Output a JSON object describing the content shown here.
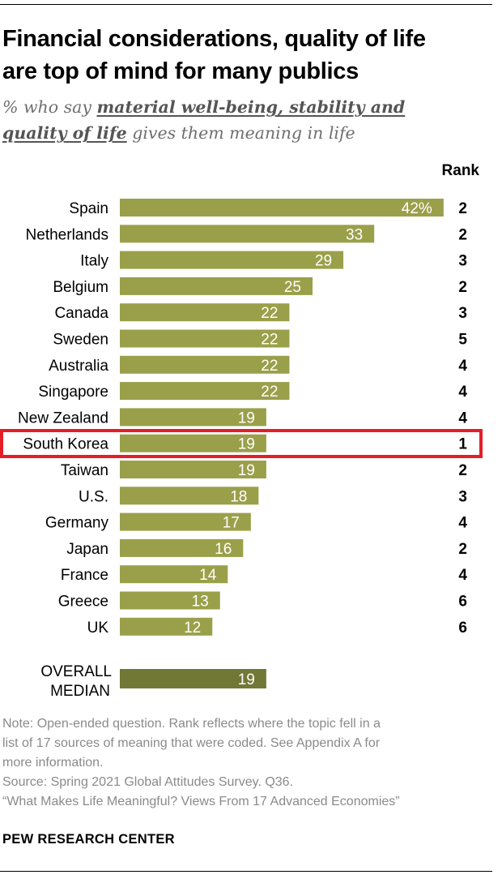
{
  "header": {
    "title_line1": "Financial considerations, quality of life",
    "title_line2": "are top of mind for many publics",
    "subtitle_prefix": "% who say",
    "subtitle_emphasis_1": "material well-being, stability and",
    "subtitle_emphasis_2": "quality of life",
    "subtitle_suffix": "gives them meaning in life",
    "rank_label": "Rank"
  },
  "colors": {
    "bar": "#9aa04a",
    "median_bar": "#717835",
    "highlight": "#e41e26",
    "value_text": "#ffffff"
  },
  "chart_data": {
    "type": "bar",
    "orientation": "horizontal",
    "categories": [
      "Spain",
      "Netherlands",
      "Italy",
      "Belgium",
      "Canada",
      "Sweden",
      "Australia",
      "Singapore",
      "New Zealand",
      "South Korea",
      "Taiwan",
      "U.S.",
      "Germany",
      "Japan",
      "France",
      "Greece",
      "UK"
    ],
    "values": [
      42,
      33,
      29,
      25,
      22,
      22,
      22,
      22,
      19,
      19,
      19,
      18,
      17,
      16,
      14,
      13,
      12
    ],
    "value_labels": [
      "42%",
      "33",
      "29",
      "25",
      "22",
      "22",
      "22",
      "22",
      "19",
      "19",
      "19",
      "18",
      "17",
      "16",
      "14",
      "13",
      "12"
    ],
    "ranks": [
      "2",
      "2",
      "3",
      "2",
      "3",
      "5",
      "4",
      "4",
      "4",
      "1",
      "2",
      "3",
      "4",
      "2",
      "4",
      "6",
      "6"
    ],
    "highlighted_category": "South Korea",
    "median": {
      "label_line1": "OVERALL",
      "label_line2": "MEDIAN",
      "value": 19,
      "value_label": "19"
    },
    "xlim": [
      0,
      42
    ],
    "grid": false,
    "legend": "none"
  },
  "footer": {
    "note_1": "Note: Open-ended question. Rank reflects where the topic fell in a",
    "note_2": "list of 17 sources of meaning that were coded. See Appendix A for",
    "note_3": "more information.",
    "source": "Source: Spring 2021 Global Attitudes Survey. Q36.",
    "report": "“What Makes Life Meaningful? Views From 17 Advanced Economies”",
    "brand": "PEW RESEARCH CENTER"
  }
}
